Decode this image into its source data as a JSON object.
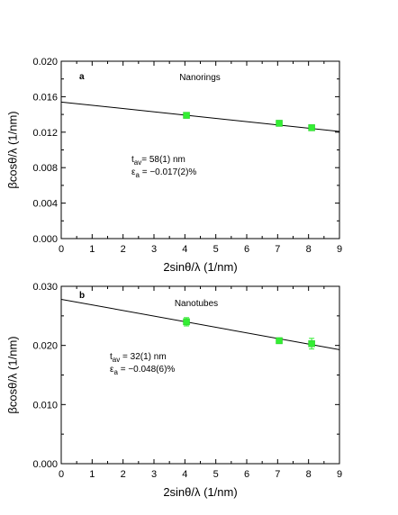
{
  "chart_data": [
    {
      "type": "scatter",
      "panel_label": "a",
      "title": "Nanorings",
      "xlabel": "2sinθ/λ (1/nm)",
      "ylabel": "βcosθ/λ (1/nm)",
      "xlim": [
        0,
        9
      ],
      "ylim": [
        0,
        0.02
      ],
      "x_ticks": [
        "0",
        "1",
        "2",
        "3",
        "4",
        "5",
        "6",
        "7",
        "8",
        "9"
      ],
      "y_ticks": [
        "0.000",
        "0.004",
        "0.008",
        "0.012",
        "0.016",
        "0.020"
      ],
      "grid": false,
      "points": [
        {
          "x": 4.05,
          "y": 0.0139,
          "err": 0.0002
        },
        {
          "x": 7.05,
          "y": 0.013,
          "err": 0.0002
        },
        {
          "x": 8.1,
          "y": 0.0125,
          "err": 0.0002
        }
      ],
      "point_color": "#33ee33",
      "fit_line": {
        "intercept": 0.0154,
        "slope": -0.000369
      },
      "annotations": {
        "t_base": "t",
        "t_sub": "av",
        "t_value": "= 58(1) nm",
        "e_base": "ε",
        "e_sub": "a",
        "e_value": " = −0.017(2)%"
      }
    },
    {
      "type": "scatter",
      "panel_label": "b",
      "title": "Nanotubes",
      "xlabel": "2sinθ/λ (1/nm)",
      "ylabel": "βcosθ/λ (1/nm)",
      "xlim": [
        0,
        9
      ],
      "ylim": [
        0,
        0.03
      ],
      "x_ticks": [
        "0",
        "1",
        "2",
        "3",
        "4",
        "5",
        "6",
        "7",
        "8",
        "9"
      ],
      "y_ticks": [
        "0.000",
        "0.010",
        "0.020",
        "0.030"
      ],
      "grid": false,
      "points": [
        {
          "x": 4.05,
          "y": 0.024,
          "err": 0.0007
        },
        {
          "x": 7.05,
          "y": 0.0208,
          "err": 0.0004
        },
        {
          "x": 8.1,
          "y": 0.0203,
          "err": 0.0009
        }
      ],
      "point_color": "#33ee33",
      "fit_line": {
        "intercept": 0.0278,
        "slope": -0.000946
      },
      "annotations": {
        "t_base": "t",
        "t_sub": "av",
        "t_value": " = 32(1) nm",
        "e_base": "ε",
        "e_sub": "a",
        "e_value": " = −0.048(6)%"
      }
    }
  ]
}
